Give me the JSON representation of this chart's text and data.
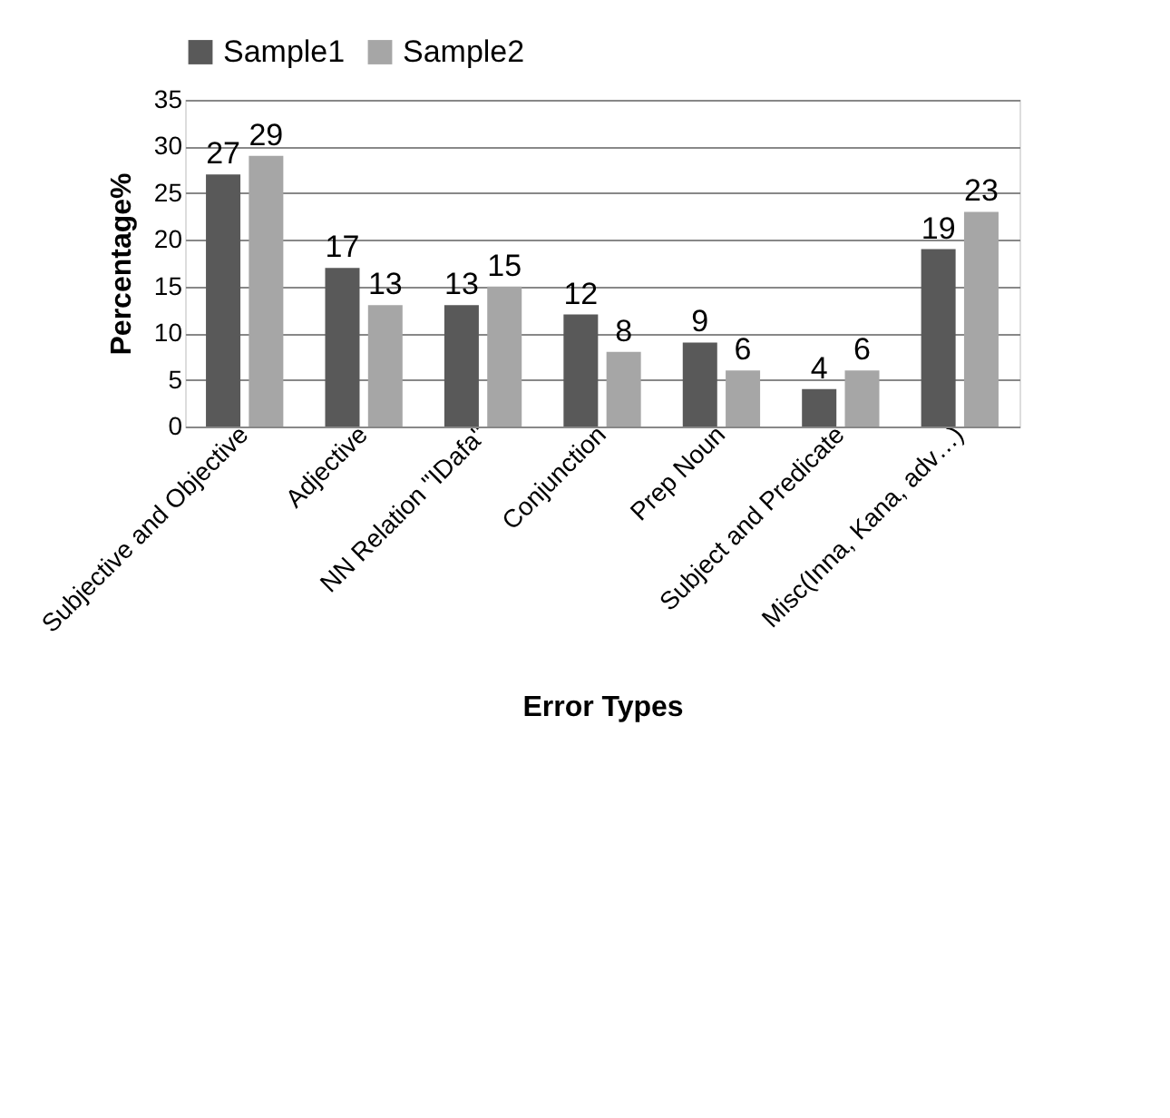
{
  "chart_data": {
    "type": "bar",
    "xlabel": "Error Types",
    "ylabel": "Percentage%",
    "categories": [
      "Subjective and Objective",
      "Adjective",
      "NN Relation \"IDafa\"",
      "Conjunction",
      "Prep Noun",
      "Subject and Predicate",
      "Misc(Inna, Kana, adv…)"
    ],
    "series": [
      {
        "name": "Sample1",
        "color": "#595959",
        "values": [
          27,
          17,
          13,
          12,
          9,
          4,
          19
        ]
      },
      {
        "name": "Sample2",
        "color": "#a6a6a6",
        "values": [
          29,
          13,
          15,
          8,
          6,
          6,
          23
        ]
      }
    ],
    "ylim": [
      0,
      35
    ],
    "yticks": [
      0,
      5,
      10,
      15,
      20,
      25,
      30,
      35
    ],
    "grid": "y",
    "legend": "top",
    "data_labels": true
  }
}
